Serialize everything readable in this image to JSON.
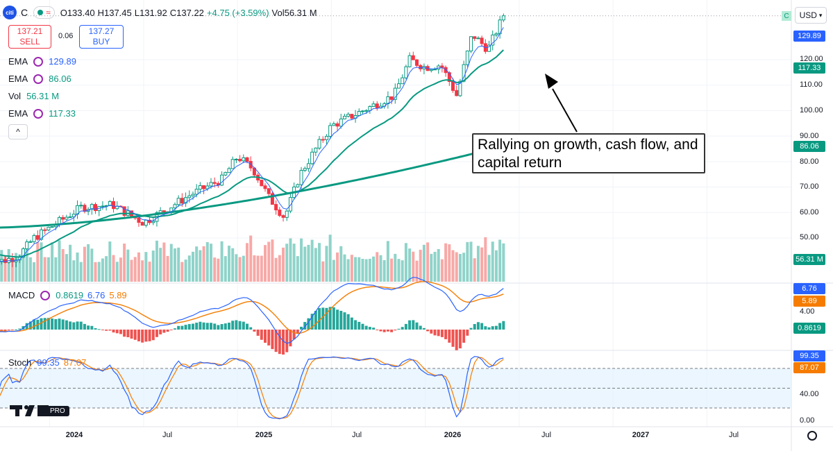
{
  "header": {
    "logo_text": "citi",
    "symbol": "C",
    "open": "O133.40",
    "high": "H137.45",
    "low": "L131.92",
    "close": "C137.22",
    "change": "+4.75 (+3.59%)",
    "volume": "Vol56.31 M"
  },
  "trade": {
    "sell_price": "137.21",
    "sell_label": "SELL",
    "spread": "0.06",
    "buy_price": "137.27",
    "buy_label": "BUY"
  },
  "legend": [
    {
      "name": "EMA",
      "value": "129.89",
      "color": "#2962ff"
    },
    {
      "name": "EMA",
      "value": "86.06",
      "color": "#089981"
    },
    {
      "name": "Vol",
      "value": "56.31 M",
      "color": "#089981"
    },
    {
      "name": "EMA",
      "value": "117.33",
      "color": "#089981"
    }
  ],
  "macd_legend": {
    "name": "MACD",
    "hist": "0.8619",
    "macd": "6.76",
    "signal": "5.89"
  },
  "stoch_legend": {
    "name": "Stoch",
    "k": "99.35",
    "d": "87.07"
  },
  "currency": "USD",
  "c_badge": "C",
  "annotation": "Rallying on growth, cash flow, and capital return",
  "tv_badge": "PRO",
  "price_axis": [
    "120.00",
    "110.00",
    "100.00",
    "90.00",
    "80.00",
    "70.00",
    "60.00",
    "50.00"
  ],
  "price_tags": {
    "ema_fast": "129.89",
    "ema_mid": "117.33",
    "ema_slow": "86.06",
    "volume": "56.31 M"
  },
  "macd_axis": [
    "4.00"
  ],
  "macd_tags": {
    "macd": "6.76",
    "signal": "5.89",
    "hist": "0.8619"
  },
  "stoch_axis": [
    "40.00",
    "0.00"
  ],
  "stoch_tags": {
    "k": "99.35",
    "d": "87.07"
  },
  "time_axis": [
    "2024",
    "Jul",
    "2025",
    "Jul",
    "2026",
    "Jul",
    "2027",
    "Jul"
  ],
  "colors": {
    "up": "#089981",
    "down": "#f23645",
    "ema_fast": "#2962ff",
    "ema_slow": "#089981",
    "macd": "#2962ff",
    "signal": "#f57c00"
  },
  "chart_data": {
    "type": "candlestick",
    "title": "",
    "x_range": [
      "2023-09",
      "2027-12"
    ],
    "ylim": [
      40,
      145
    ],
    "price_waypoints": [
      {
        "t": "2023-10",
        "price": 41
      },
      {
        "t": "2023-11",
        "price": 43
      },
      {
        "t": "2023-12",
        "price": 50
      },
      {
        "t": "2024-03",
        "price": 62
      },
      {
        "t": "2024-05",
        "price": 63
      },
      {
        "t": "2024-07",
        "price": 56
      },
      {
        "t": "2024-10",
        "price": 67
      },
      {
        "t": "2024-12",
        "price": 73
      },
      {
        "t": "2025-01",
        "price": 82
      },
      {
        "t": "2025-02",
        "price": 77
      },
      {
        "t": "2025-03",
        "price": 66
      },
      {
        "t": "2025-04",
        "price": 58
      },
      {
        "t": "2025-05",
        "price": 75
      },
      {
        "t": "2025-06",
        "price": 85
      },
      {
        "t": "2025-07",
        "price": 94
      },
      {
        "t": "2025-09",
        "price": 100
      },
      {
        "t": "2025-11",
        "price": 106
      },
      {
        "t": "2025-12",
        "price": 120
      },
      {
        "t": "2026-01",
        "price": 117
      },
      {
        "t": "2026-02",
        "price": 118
      },
      {
        "t": "2026-03",
        "price": 106
      },
      {
        "t": "2026-04",
        "price": 130
      },
      {
        "t": "2026-05",
        "price": 124
      },
      {
        "t": "2026-06",
        "price": 137.22
      }
    ],
    "ema_fast_last": 129.89,
    "ema_mid_last": 117.33,
    "ema_slow_last": 86.06,
    "volume_last": "56.31 M",
    "macd_last": 6.76,
    "signal_last": 5.89,
    "hist_last": 0.8619,
    "stoch_k_last": 99.35,
    "stoch_d_last": 87.07
  }
}
